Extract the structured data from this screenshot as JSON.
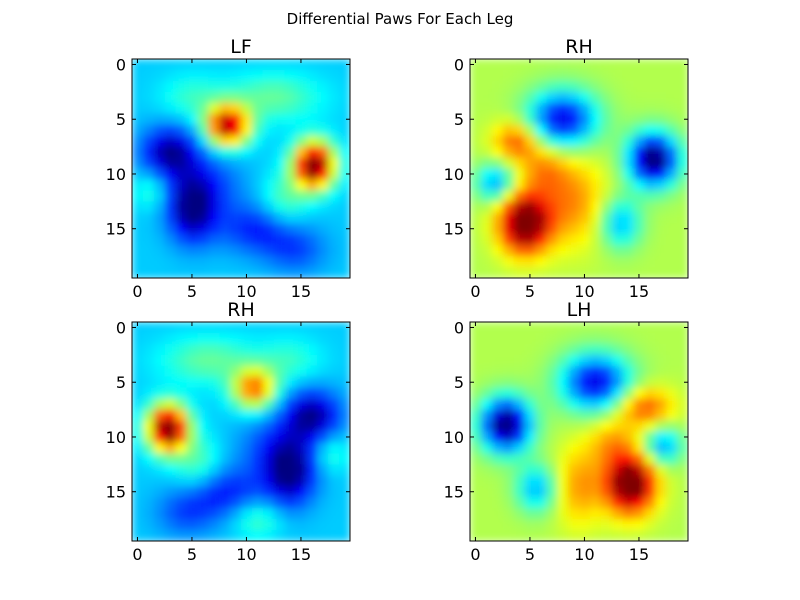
{
  "figure": {
    "title": "Differential Paws For Each Leg",
    "background": "#ffffff"
  },
  "chart_data": [
    {
      "type": "heatmap",
      "title": "LF",
      "grid": false,
      "x_ticks": [
        0,
        5,
        10,
        15
      ],
      "y_ticks": [
        0,
        5,
        10,
        15
      ],
      "xlim": [
        -0.5,
        19.5
      ],
      "ylim": [
        19.5,
        -0.5
      ],
      "colormap": "jet",
      "vmin": -1,
      "vmax": 1,
      "base": -0.35,
      "blobs": [
        {
          "x": 3,
          "y": 8,
          "sx": 1.8,
          "sy": 1.6,
          "a": -0.6
        },
        {
          "x": 5,
          "y": 13.5,
          "sx": 1.5,
          "sy": 2.0,
          "a": -0.6
        },
        {
          "x": 6,
          "y": 11,
          "sx": 2.5,
          "sy": 2.0,
          "a": -0.3
        },
        {
          "x": 11,
          "y": 15,
          "sx": 2.5,
          "sy": 1.6,
          "a": -0.35
        },
        {
          "x": 14.5,
          "y": 17,
          "sx": 2.0,
          "sy": 1.5,
          "a": -0.25
        },
        {
          "x": 8.3,
          "y": 5.6,
          "sx": 1.4,
          "sy": 1.3,
          "a": 1.3
        },
        {
          "x": 16.2,
          "y": 9.2,
          "sx": 1.3,
          "sy": 1.5,
          "a": 1.5
        },
        {
          "x": 12.5,
          "y": 3,
          "sx": 3.0,
          "sy": 1.5,
          "a": 0.3
        },
        {
          "x": 5,
          "y": 3,
          "sx": 2.0,
          "sy": 1.4,
          "a": 0.2
        },
        {
          "x": 13.5,
          "y": 12.5,
          "sx": 1.5,
          "sy": 1.8,
          "a": 0.28
        },
        {
          "x": 1.3,
          "y": 11.5,
          "sx": 1.2,
          "sy": 1.2,
          "a": 0.22
        }
      ]
    },
    {
      "type": "heatmap",
      "title": "RH",
      "grid": false,
      "x_ticks": [
        0,
        5,
        10,
        15
      ],
      "y_ticks": [
        0,
        5,
        10,
        15
      ],
      "xlim": [
        -0.5,
        19.5
      ],
      "ylim": [
        19.5,
        -0.5
      ],
      "colormap": "jet",
      "vmin": -1,
      "vmax": 1,
      "base": 0.1,
      "blobs": [
        {
          "x": 8,
          "y": 5,
          "sx": 2.2,
          "sy": 1.8,
          "a": -0.9
        },
        {
          "x": 16.3,
          "y": 8.7,
          "sx": 1.6,
          "sy": 1.7,
          "a": -1.2
        },
        {
          "x": 1.8,
          "y": 10.8,
          "sx": 1.2,
          "sy": 1.2,
          "a": -0.55
        },
        {
          "x": 13.3,
          "y": 14.5,
          "sx": 1.3,
          "sy": 1.6,
          "a": -0.5
        },
        {
          "x": 4.5,
          "y": 14.5,
          "sx": 1.6,
          "sy": 1.9,
          "a": 1.1
        },
        {
          "x": 3.8,
          "y": 7,
          "sx": 1.5,
          "sy": 1.3,
          "a": 0.5
        },
        {
          "x": 8.8,
          "y": 12.5,
          "sx": 2.2,
          "sy": 2.8,
          "a": 0.38
        },
        {
          "x": 6.3,
          "y": 9.5,
          "sx": 1.5,
          "sy": 1.5,
          "a": 0.3
        }
      ]
    },
    {
      "type": "heatmap",
      "title": "RH",
      "grid": false,
      "x_ticks": [
        0,
        5,
        10,
        15
      ],
      "y_ticks": [
        0,
        5,
        10,
        15
      ],
      "xlim": [
        -0.5,
        19.5
      ],
      "ylim": [
        19.5,
        -0.5
      ],
      "colormap": "jet",
      "vmin": -1,
      "vmax": 1,
      "base": -0.35,
      "blobs": [
        {
          "x": 16,
          "y": 8,
          "sx": 1.8,
          "sy": 1.6,
          "a": -0.6
        },
        {
          "x": 14,
          "y": 13.5,
          "sx": 1.6,
          "sy": 2.0,
          "a": -0.6
        },
        {
          "x": 13,
          "y": 11,
          "sx": 2.5,
          "sy": 2.0,
          "a": -0.3
        },
        {
          "x": 8,
          "y": 15,
          "sx": 2.5,
          "sy": 1.6,
          "a": -0.35
        },
        {
          "x": 4.5,
          "y": 17,
          "sx": 2.0,
          "sy": 1.5,
          "a": -0.25
        },
        {
          "x": 10.7,
          "y": 5.6,
          "sx": 1.4,
          "sy": 1.3,
          "a": 0.9
        },
        {
          "x": 2.8,
          "y": 9.2,
          "sx": 1.3,
          "sy": 1.5,
          "a": 1.5
        },
        {
          "x": 6.5,
          "y": 3,
          "sx": 3.0,
          "sy": 1.5,
          "a": 0.3
        },
        {
          "x": 14,
          "y": 3,
          "sx": 2.0,
          "sy": 1.4,
          "a": 0.2
        },
        {
          "x": 5.5,
          "y": 12.5,
          "sx": 1.5,
          "sy": 1.8,
          "a": 0.28
        },
        {
          "x": 17.7,
          "y": 11.5,
          "sx": 1.2,
          "sy": 1.2,
          "a": 0.22
        },
        {
          "x": 11,
          "y": 17.5,
          "sx": 1.5,
          "sy": 1.2,
          "a": 0.25
        }
      ]
    },
    {
      "type": "heatmap",
      "title": "LH",
      "grid": false,
      "x_ticks": [
        0,
        5,
        10,
        15
      ],
      "y_ticks": [
        0,
        5,
        10,
        15
      ],
      "xlim": [
        -0.5,
        19.5
      ],
      "ylim": [
        19.5,
        -0.5
      ],
      "colormap": "jet",
      "vmin": -1,
      "vmax": 1,
      "base": 0.1,
      "blobs": [
        {
          "x": 11,
          "y": 5,
          "sx": 2.2,
          "sy": 1.8,
          "a": -0.9
        },
        {
          "x": 2.8,
          "y": 8.9,
          "sx": 1.6,
          "sy": 1.7,
          "a": -1.2
        },
        {
          "x": 17.2,
          "y": 10.8,
          "sx": 1.2,
          "sy": 1.2,
          "a": -0.55
        },
        {
          "x": 5.6,
          "y": 14.7,
          "sx": 1.3,
          "sy": 1.5,
          "a": -0.5
        },
        {
          "x": 14.2,
          "y": 14.3,
          "sx": 1.6,
          "sy": 1.9,
          "a": 1.1
        },
        {
          "x": 15.5,
          "y": 7.3,
          "sx": 1.8,
          "sy": 1.3,
          "a": 0.5
        },
        {
          "x": 9.5,
          "y": 14.5,
          "sx": 1.5,
          "sy": 2.5,
          "a": 0.35
        },
        {
          "x": 12.5,
          "y": 10.5,
          "sx": 1.5,
          "sy": 1.5,
          "a": 0.3
        }
      ]
    }
  ]
}
